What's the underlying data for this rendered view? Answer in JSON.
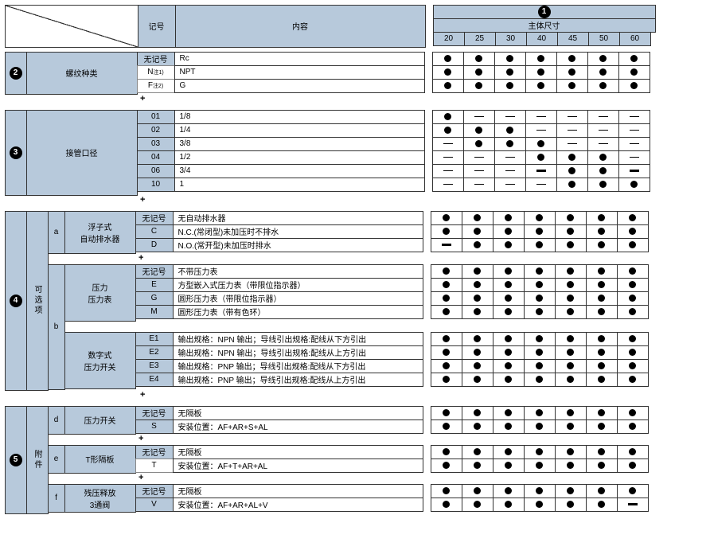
{
  "header": {
    "code_label": "记号",
    "content_label": "内容",
    "size_title": "主体尺寸",
    "circle1": "1",
    "sizes": [
      "20",
      "25",
      "30",
      "40",
      "45",
      "50",
      "60"
    ]
  },
  "plus": "+",
  "sections": {
    "s2": {
      "circle": "2",
      "title": "螺纹种类",
      "rows": [
        {
          "code": "无记号",
          "content": "Rc",
          "marks": [
            "d",
            "d",
            "d",
            "d",
            "d",
            "d",
            "d"
          ],
          "code_hdr": true
        },
        {
          "code": "N",
          "sup": "注1)",
          "content": "NPT",
          "marks": [
            "d",
            "d",
            "d",
            "d",
            "d",
            "d",
            "d"
          ]
        },
        {
          "code": "F",
          "sup": "注2)",
          "content": "G",
          "marks": [
            "d",
            "d",
            "d",
            "d",
            "d",
            "d",
            "d"
          ]
        }
      ]
    },
    "s3": {
      "circle": "3",
      "title": "接管口径",
      "rows": [
        {
          "code": "01",
          "content": "1/8",
          "marks": [
            "d",
            "h",
            "h",
            "h",
            "h",
            "h",
            "h"
          ],
          "code_hdr": true
        },
        {
          "code": "02",
          "content": "1/4",
          "marks": [
            "d",
            "d",
            "d",
            "h",
            "h",
            "h",
            "h"
          ],
          "code_hdr": true
        },
        {
          "code": "03",
          "content": "3/8",
          "marks": [
            "h",
            "d",
            "d",
            "d",
            "h",
            "h",
            "h"
          ],
          "code_hdr": true
        },
        {
          "code": "04",
          "content": "1/2",
          "marks": [
            "h",
            "h",
            "h",
            "d",
            "d",
            "d",
            "h"
          ],
          "code_hdr": true
        },
        {
          "code": "06",
          "content": "3/4",
          "marks": [
            "h",
            "h",
            "h",
            "H",
            "d",
            "d",
            "H"
          ],
          "code_hdr": true
        },
        {
          "code": "10",
          "content": "1",
          "marks": [
            "h",
            "h",
            "h",
            "h",
            "d",
            "d",
            "d"
          ],
          "code_hdr": true
        }
      ]
    },
    "s4": {
      "circle": "4",
      "side_label": "可选项",
      "groups": [
        {
          "sub": "a",
          "desc": "浮子式\n自动排水器",
          "rows": [
            {
              "code": "无记号",
              "content": "无自动排水器",
              "marks": [
                "d",
                "d",
                "d",
                "d",
                "d",
                "d",
                "d"
              ],
              "code_hdr": true
            },
            {
              "code": "C",
              "content": "N.C.(常闭型)未加压时不排水",
              "marks": [
                "d",
                "d",
                "d",
                "d",
                "d",
                "d",
                "d"
              ],
              "code_hdr": true
            },
            {
              "code": "D",
              "content": "N.O.(常开型)未加压时排水",
              "marks": [
                "H",
                "d",
                "d",
                "d",
                "d",
                "d",
                "d"
              ],
              "code_hdr": true
            }
          ]
        },
        {
          "sub": "b",
          "blocks": [
            {
              "desc": "压力\n压力表",
              "rows": [
                {
                  "code": "无记号",
                  "content": "不带压力表",
                  "marks": [
                    "d",
                    "d",
                    "d",
                    "d",
                    "d",
                    "d",
                    "d"
                  ],
                  "code_hdr": true
                },
                {
                  "code": "E",
                  "content": "方型嵌入式压力表（带限位指示器）",
                  "marks": [
                    "d",
                    "d",
                    "d",
                    "d",
                    "d",
                    "d",
                    "d"
                  ],
                  "code_hdr": true
                },
                {
                  "code": "G",
                  "content": "圆形压力表（带限位指示器）",
                  "marks": [
                    "d",
                    "d",
                    "d",
                    "d",
                    "d",
                    "d",
                    "d"
                  ],
                  "code_hdr": true
                },
                {
                  "code": "M",
                  "content": "圆形压力表（带有色环）",
                  "marks": [
                    "d",
                    "d",
                    "d",
                    "d",
                    "d",
                    "d",
                    "d"
                  ],
                  "code_hdr": true
                }
              ]
            },
            {
              "desc": "数字式\n压力开关",
              "rows": [
                {
                  "code": "E1",
                  "content": "输出规格：NPN 输出；导线引出规格:配线从下方引出",
                  "marks": [
                    "d",
                    "d",
                    "d",
                    "d",
                    "d",
                    "d",
                    "d"
                  ],
                  "code_hdr": true
                },
                {
                  "code": "E2",
                  "content": "输出规格：NPN 输出；导线引出规格:配线从上方引出",
                  "marks": [
                    "d",
                    "d",
                    "d",
                    "d",
                    "d",
                    "d",
                    "d"
                  ],
                  "code_hdr": true
                },
                {
                  "code": "E3",
                  "content": "输出规格：PNP 输出；导线引出规格:配线从下方引出",
                  "marks": [
                    "d",
                    "d",
                    "d",
                    "d",
                    "d",
                    "d",
                    "d"
                  ],
                  "code_hdr": true
                },
                {
                  "code": "E4",
                  "content": "输出规格：PNP 输出；导线引出规格:配线从上方引出",
                  "marks": [
                    "d",
                    "d",
                    "d",
                    "d",
                    "d",
                    "d",
                    "d"
                  ],
                  "code_hdr": true
                }
              ]
            }
          ]
        }
      ]
    },
    "s5": {
      "circle": "5",
      "side_label": "附件",
      "groups": [
        {
          "sub": "d",
          "desc": "压力开关",
          "rows": [
            {
              "code": "无记号",
              "content": "无隔板",
              "marks": [
                "d",
                "d",
                "d",
                "d",
                "d",
                "d",
                "d"
              ],
              "code_hdr": true
            },
            {
              "code": "S",
              "content": "安装位置：AF+AR+S+AL",
              "marks": [
                "d",
                "d",
                "d",
                "d",
                "d",
                "d",
                "d"
              ],
              "code_hdr": true
            }
          ]
        },
        {
          "sub": "e",
          "desc": "T形隔板",
          "rows": [
            {
              "code": "无记号",
              "content": "无隔板",
              "marks": [
                "d",
                "d",
                "d",
                "d",
                "d",
                "d",
                "d"
              ],
              "code_hdr": true
            },
            {
              "code": "T",
              "content": "安装位置：AF+T+AR+AL",
              "marks": [
                "d",
                "d",
                "d",
                "d",
                "d",
                "d",
                "d"
              ]
            }
          ]
        },
        {
          "sub": "f",
          "desc": "残压释放\n3通阀",
          "rows": [
            {
              "code": "无记号",
              "content": "无隔板",
              "marks": [
                "d",
                "d",
                "d",
                "d",
                "d",
                "d",
                "d"
              ],
              "code_hdr": true
            },
            {
              "code": "V",
              "content": "安装位置：AF+AR+AL+V",
              "marks": [
                "d",
                "d",
                "d",
                "d",
                "d",
                "d",
                "H"
              ],
              "code_hdr": true
            }
          ]
        }
      ]
    }
  }
}
